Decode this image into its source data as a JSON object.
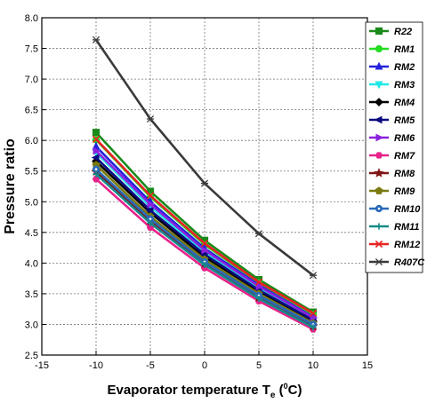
{
  "chart_data": {
    "type": "line",
    "xlabel_main": "Evaporator temperature T",
    "xlabel_sub": "e",
    "xlabel_paren": " (",
    "xlabel_sup": "0",
    "xlabel_unit": "C)",
    "ylabel": "Pressure ratio",
    "xlim": [
      -15,
      15
    ],
    "ylim": [
      2.5,
      8.0
    ],
    "x_ticks": [
      "-15",
      "-10",
      "-5",
      "0",
      "5",
      "10",
      "15"
    ],
    "y_ticks": [
      "2.5",
      "3.0",
      "3.5",
      "4.0",
      "4.5",
      "5.0",
      "5.5",
      "6.0",
      "6.5",
      "7.0",
      "7.5",
      "8.0"
    ],
    "grid": true,
    "legend_position": "right",
    "x": [
      -10,
      -5,
      0,
      5,
      10
    ],
    "series": [
      {
        "name": "R22",
        "color": "#1a8a1a",
        "marker": "square",
        "values": [
          6.13,
          5.17,
          4.37,
          3.73,
          3.2
        ]
      },
      {
        "name": "RM1",
        "color": "#22dd22",
        "marker": "circle",
        "values": [
          6.01,
          5.08,
          4.3,
          3.68,
          3.16
        ]
      },
      {
        "name": "RM2",
        "color": "#2222dd",
        "marker": "triangle-up",
        "values": [
          5.9,
          5.0,
          4.24,
          3.64,
          3.12
        ]
      },
      {
        "name": "RM3",
        "color": "#22e8e8",
        "marker": "triangle-down",
        "values": [
          5.8,
          4.92,
          4.18,
          3.6,
          3.09
        ]
      },
      {
        "name": "RM4",
        "color": "#000000",
        "marker": "diamond",
        "values": [
          5.66,
          4.82,
          4.1,
          3.53,
          3.05
        ]
      },
      {
        "name": "RM5",
        "color": "#0a0a80",
        "marker": "triangle-left",
        "values": [
          5.72,
          4.86,
          4.14,
          3.56,
          3.07
        ]
      },
      {
        "name": "RM6",
        "color": "#8a22dd",
        "marker": "triangle-right",
        "values": [
          5.83,
          4.96,
          4.21,
          3.62,
          3.11
        ]
      },
      {
        "name": "RM7",
        "color": "#e8228a",
        "marker": "hexagon",
        "values": [
          5.37,
          4.58,
          3.92,
          3.38,
          2.92
        ]
      },
      {
        "name": "RM8",
        "color": "#801515",
        "marker": "star",
        "values": [
          5.49,
          4.68,
          3.99,
          3.44,
          2.97
        ]
      },
      {
        "name": "RM9",
        "color": "#7a7a10",
        "marker": "pentagon",
        "values": [
          5.6,
          4.76,
          4.06,
          3.5,
          3.02
        ]
      },
      {
        "name": "RM10",
        "color": "#2a6ab8",
        "marker": "circle-dot",
        "values": [
          5.53,
          4.72,
          4.02,
          3.47,
          3.0
        ]
      },
      {
        "name": "RM11",
        "color": "#158a8a",
        "marker": "plus",
        "values": [
          5.45,
          4.65,
          3.97,
          3.42,
          2.95
        ]
      },
      {
        "name": "RM12",
        "color": "#e82222",
        "marker": "x",
        "values": [
          6.02,
          5.1,
          4.32,
          3.69,
          3.18
        ]
      },
      {
        "name": "R407C",
        "color": "#3a3a3a",
        "marker": "asterisk",
        "values": [
          7.64,
          6.35,
          5.3,
          4.48,
          3.8
        ]
      }
    ]
  }
}
